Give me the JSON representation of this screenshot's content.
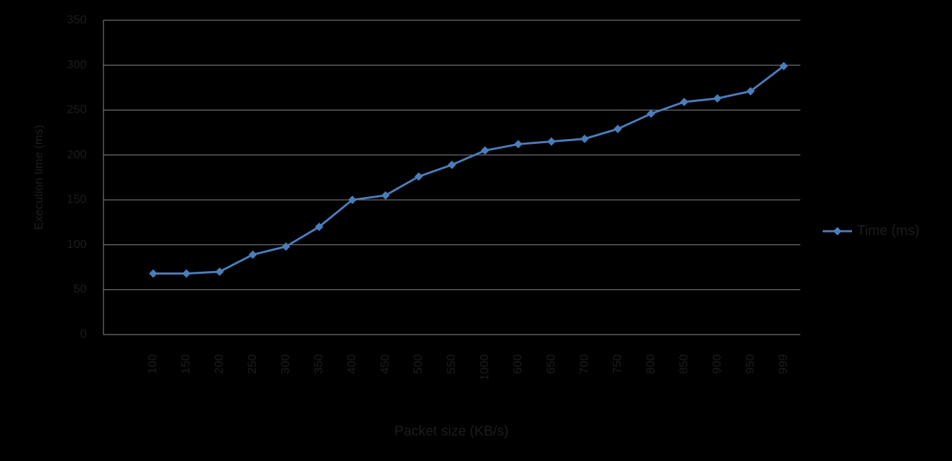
{
  "chart_data": {
    "type": "line",
    "y_label": "Execution time (ms)",
    "x_label": "Packet size (KB/s)",
    "categories": [
      null,
      "100",
      "150",
      "200",
      "250",
      "300",
      "350",
      "400",
      "450",
      "500",
      "550",
      "1000",
      "600",
      "650",
      "700",
      "750",
      "800",
      "850",
      "900",
      "950",
      "999"
    ],
    "series": [
      {
        "name": "Time (ms)",
        "color": "#4a7ebb",
        "values": [
          null,
          68,
          68,
          70,
          89,
          98,
          120,
          150,
          155,
          176,
          189,
          205,
          212,
          215,
          218,
          229,
          246,
          259,
          263,
          271,
          299
        ]
      }
    ],
    "ylim": [
      0,
      350
    ],
    "yticks": [
      0,
      50,
      100,
      150,
      200,
      250,
      300,
      350
    ],
    "grid": true,
    "legend": "right"
  }
}
